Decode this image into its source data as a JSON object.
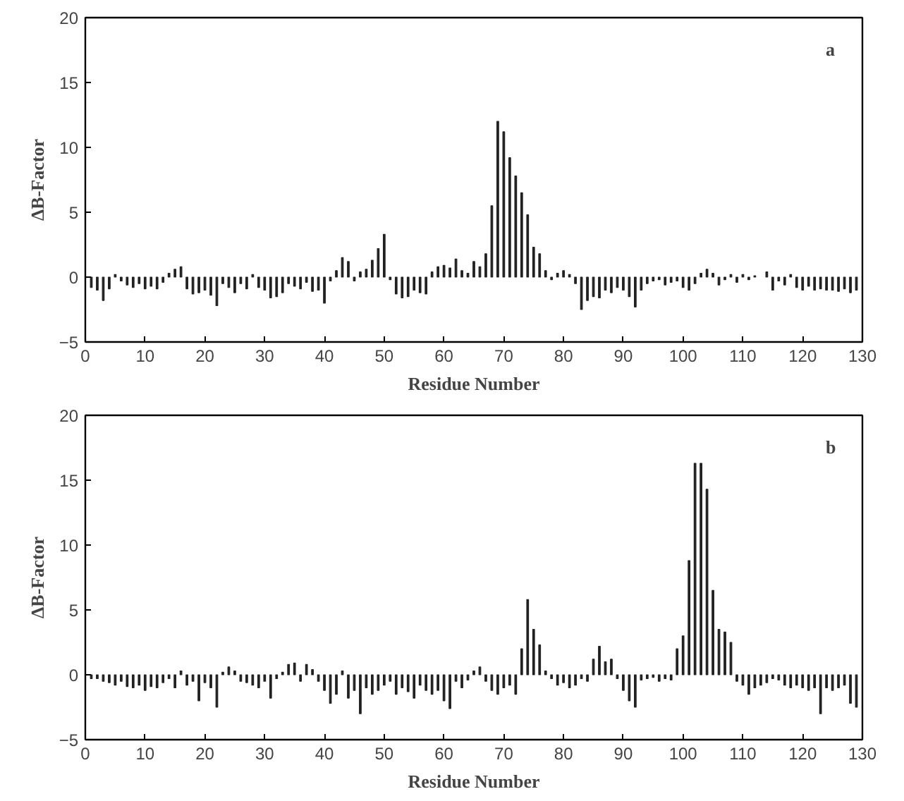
{
  "chart_data": [
    {
      "type": "bar",
      "xlabel": "Residue Number",
      "ylabel": "ΔB-Factor",
      "annotations": [
        "a"
      ],
      "xlim": [
        0,
        130
      ],
      "ylim": [
        -5,
        20
      ],
      "xticks": [
        0,
        10,
        20,
        30,
        40,
        50,
        60,
        70,
        80,
        90,
        100,
        110,
        120,
        130
      ],
      "yticks": [
        -5,
        0,
        5,
        10,
        15,
        20
      ],
      "grid": false,
      "color": "#222222",
      "x": [
        1,
        2,
        3,
        4,
        5,
        6,
        7,
        8,
        9,
        10,
        11,
        12,
        13,
        14,
        15,
        16,
        17,
        18,
        19,
        20,
        21,
        22,
        23,
        24,
        25,
        26,
        27,
        28,
        29,
        30,
        31,
        32,
        33,
        34,
        35,
        36,
        37,
        38,
        39,
        40,
        41,
        42,
        43,
        44,
        45,
        46,
        47,
        48,
        49,
        50,
        51,
        52,
        53,
        54,
        55,
        56,
        57,
        58,
        59,
        60,
        61,
        62,
        63,
        64,
        65,
        66,
        67,
        68,
        69,
        70,
        71,
        72,
        73,
        74,
        75,
        76,
        77,
        78,
        79,
        80,
        81,
        82,
        83,
        84,
        85,
        86,
        87,
        88,
        89,
        90,
        91,
        92,
        93,
        94,
        95,
        96,
        97,
        98,
        99,
        100,
        101,
        102,
        103,
        104,
        105,
        106,
        107,
        108,
        109,
        110,
        111,
        112,
        113,
        114,
        115,
        116,
        117,
        118,
        119,
        120,
        121,
        122,
        123,
        124,
        125,
        126,
        127,
        128,
        129
      ],
      "values": [
        -0.8,
        -1.0,
        -1.8,
        -0.9,
        0.2,
        -0.3,
        -0.6,
        -0.8,
        -0.5,
        -0.9,
        -0.7,
        -0.9,
        -0.4,
        0.3,
        0.6,
        0.8,
        -0.9,
        -1.3,
        -1.2,
        -1.0,
        -1.4,
        -2.2,
        -0.5,
        -0.8,
        -1.2,
        -0.5,
        -0.9,
        0.2,
        -0.8,
        -1.0,
        -1.6,
        -1.5,
        -1.2,
        -0.5,
        -0.7,
        -0.9,
        -0.4,
        -1.1,
        -1.0,
        -2.0,
        -0.3,
        0.5,
        1.5,
        1.2,
        -0.3,
        0.4,
        0.6,
        1.3,
        2.2,
        3.3,
        -0.2,
        -1.3,
        -1.6,
        -1.5,
        -1.0,
        -1.2,
        -1.3,
        0.4,
        0.8,
        0.9,
        0.7,
        1.4,
        0.5,
        0.3,
        1.2,
        0.8,
        1.8,
        5.5,
        12.0,
        11.2,
        9.2,
        7.8,
        6.5,
        4.8,
        2.3,
        1.8,
        0.5,
        -0.2,
        0.3,
        0.5,
        0.2,
        -0.5,
        -2.5,
        -1.8,
        -1.5,
        -1.6,
        -1.0,
        -1.2,
        -0.8,
        -1.0,
        -1.5,
        -2.3,
        -1.0,
        -0.5,
        -0.3,
        -0.2,
        -0.6,
        -0.4,
        -0.3,
        -0.8,
        -1.0,
        -0.5,
        0.3,
        0.6,
        0.3,
        -0.6,
        -0.2,
        0.2,
        -0.4,
        0.2,
        -0.2,
        0.1,
        null,
        0.4,
        -1.0,
        -0.3,
        -0.6,
        0.2,
        -0.8,
        -1.0,
        -0.7,
        -1.0,
        -0.9,
        -1.0,
        -1.0,
        -1.1,
        -0.9,
        -1.2,
        -1.0
      ]
    },
    {
      "type": "bar",
      "xlabel": "Residue Number",
      "ylabel": "ΔB-Factor",
      "annotations": [
        "b"
      ],
      "xlim": [
        0,
        130
      ],
      "ylim": [
        -5,
        20
      ],
      "xticks": [
        0,
        10,
        20,
        30,
        40,
        50,
        60,
        70,
        80,
        90,
        100,
        110,
        120,
        130
      ],
      "yticks": [
        -5,
        0,
        5,
        10,
        15,
        20
      ],
      "grid": false,
      "color": "#222222",
      "x": [
        1,
        2,
        3,
        4,
        5,
        6,
        7,
        8,
        9,
        10,
        11,
        12,
        13,
        14,
        15,
        16,
        17,
        18,
        19,
        20,
        21,
        22,
        23,
        24,
        25,
        26,
        27,
        28,
        29,
        30,
        31,
        32,
        33,
        34,
        35,
        36,
        37,
        38,
        39,
        40,
        41,
        42,
        43,
        44,
        45,
        46,
        47,
        48,
        49,
        50,
        51,
        52,
        53,
        54,
        55,
        56,
        57,
        58,
        59,
        60,
        61,
        62,
        63,
        64,
        65,
        66,
        67,
        68,
        69,
        70,
        71,
        72,
        73,
        74,
        75,
        76,
        77,
        78,
        79,
        80,
        81,
        82,
        83,
        84,
        85,
        86,
        87,
        88,
        89,
        90,
        91,
        92,
        93,
        94,
        95,
        96,
        97,
        98,
        99,
        100,
        101,
        102,
        103,
        104,
        105,
        106,
        107,
        108,
        109,
        110,
        111,
        112,
        113,
        114,
        115,
        116,
        117,
        118,
        119,
        120,
        121,
        122,
        123,
        124,
        125,
        126,
        127,
        128,
        129
      ],
      "values": [
        -0.3,
        -0.3,
        -0.5,
        -0.6,
        -0.8,
        -0.5,
        -0.9,
        -1.0,
        -0.8,
        -1.2,
        -0.9,
        -1.0,
        -0.6,
        -0.3,
        -1.0,
        0.3,
        -0.8,
        -0.5,
        -2.0,
        -0.6,
        -1.0,
        -2.5,
        0.2,
        0.6,
        0.3,
        -0.5,
        -0.6,
        -0.8,
        -1.0,
        -0.5,
        -1.8,
        -0.3,
        0.2,
        0.8,
        0.9,
        -0.5,
        0.8,
        0.4,
        -0.5,
        -1.2,
        -2.2,
        -1.5,
        0.3,
        -1.8,
        -1.2,
        -3.0,
        -1.0,
        -1.5,
        -1.2,
        -0.8,
        -0.5,
        -1.5,
        -1.0,
        -1.3,
        -1.8,
        -0.8,
        -1.2,
        -1.5,
        -1.2,
        -2.0,
        -2.6,
        -0.5,
        -1.0,
        -0.4,
        0.3,
        0.6,
        -0.5,
        -1.2,
        -1.5,
        -1.0,
        -0.8,
        -1.5,
        2.0,
        5.8,
        3.5,
        2.3,
        0.3,
        -0.3,
        -0.8,
        -0.6,
        -1.0,
        -0.8,
        -0.3,
        -0.5,
        1.2,
        2.2,
        1.0,
        1.2,
        -0.3,
        -1.2,
        -2.0,
        -2.5,
        -0.4,
        -0.3,
        -0.2,
        -0.5,
        -0.3,
        -0.4,
        2.0,
        3.0,
        8.8,
        16.3,
        16.3,
        14.3,
        6.5,
        3.5,
        3.3,
        2.5,
        -0.5,
        -0.8,
        -1.5,
        -1.0,
        -0.8,
        -0.6,
        -0.3,
        -0.4,
        -0.8,
        -1.0,
        -0.8,
        -1.0,
        -1.2,
        -1.0,
        -3.0,
        -1.0,
        -1.2,
        -1.0,
        -0.8,
        -2.2,
        -2.5
      ]
    }
  ]
}
